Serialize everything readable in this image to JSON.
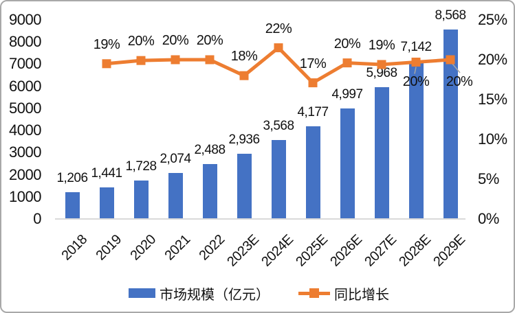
{
  "chart_data": {
    "type": "combo-bar-line",
    "categories": [
      "2018",
      "2019",
      "2020",
      "2021",
      "2022",
      "2023E",
      "2024E",
      "2025E",
      "2026E",
      "2027E",
      "2028E",
      "2029E"
    ],
    "series": [
      {
        "name": "市场规模（亿元）",
        "type": "bar",
        "color": "#4472C4",
        "values": [
          1206,
          1441,
          1728,
          2074,
          2488,
          2936,
          3568,
          4177,
          4997,
          5968,
          7142,
          8568
        ],
        "labels": [
          "1,206",
          "1,441",
          "1,728",
          "2,074",
          "2,488",
          "2,936",
          "3,568",
          "4,177",
          "4,997",
          "5,968",
          "7,142",
          "8,568"
        ],
        "axis": "left"
      },
      {
        "name": "同比增长",
        "type": "line",
        "color": "#ED7D31",
        "marker": "square",
        "values_pct": [
          null,
          19.5,
          19.9,
          20.0,
          20.0,
          18.0,
          21.5,
          17.1,
          19.6,
          19.4,
          19.7,
          20.0
        ],
        "labels": [
          null,
          "19%",
          "20%",
          "20%",
          "20%",
          "18%",
          "22%",
          "17%",
          "20%",
          "19%",
          "20%",
          "20%"
        ],
        "axis": "right"
      }
    ],
    "left_axis": {
      "min": 0,
      "max": 9000,
      "step": 1000,
      "ticks": [
        "9000",
        "8000",
        "7000",
        "6000",
        "5000",
        "4000",
        "3000",
        "2000",
        "1000",
        "0"
      ]
    },
    "right_axis": {
      "min": 0,
      "max": 25,
      "step": 5,
      "ticks": [
        "25%",
        "20%",
        "15%",
        "10%",
        "5%",
        "0%"
      ]
    },
    "legend": {
      "position": "bottom",
      "entries": [
        "市场规模（亿元）",
        "同比增长"
      ]
    },
    "grid": false,
    "line_label_below_indices": [
      10,
      11
    ],
    "leader_line_color": "#a6a6a6",
    "axis_line_color": "#d9d9d9",
    "text_color": "#111111",
    "background": "#ffffff"
  }
}
